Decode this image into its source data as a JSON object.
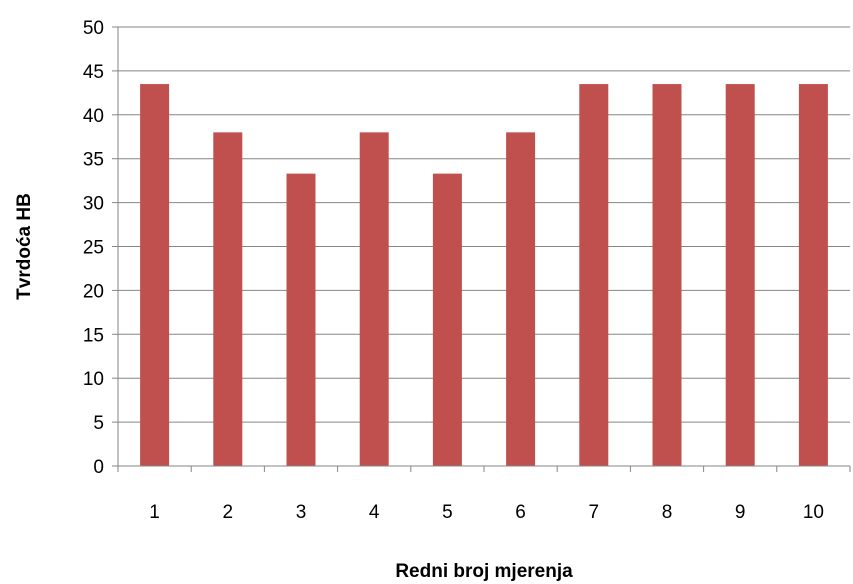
{
  "chart_data": {
    "type": "bar",
    "categories": [
      "1",
      "2",
      "3",
      "4",
      "5",
      "6",
      "7",
      "8",
      "9",
      "10"
    ],
    "values": [
      43.5,
      38,
      33.3,
      38,
      33.3,
      38,
      43.5,
      43.5,
      43.5,
      43.5
    ],
    "title": "",
    "xlabel": "Redni broj mjerenja",
    "ylabel": "Tvrdoća HB",
    "ylim": [
      0,
      50
    ],
    "yticks": [
      "0",
      "5",
      "10",
      "15",
      "20",
      "25",
      "30",
      "35",
      "40",
      "45",
      "50"
    ],
    "grid": "horizontal",
    "legend": "none",
    "colors": {
      "bar": "#c0504d",
      "grid": "#868686",
      "axis": "#868686"
    }
  }
}
